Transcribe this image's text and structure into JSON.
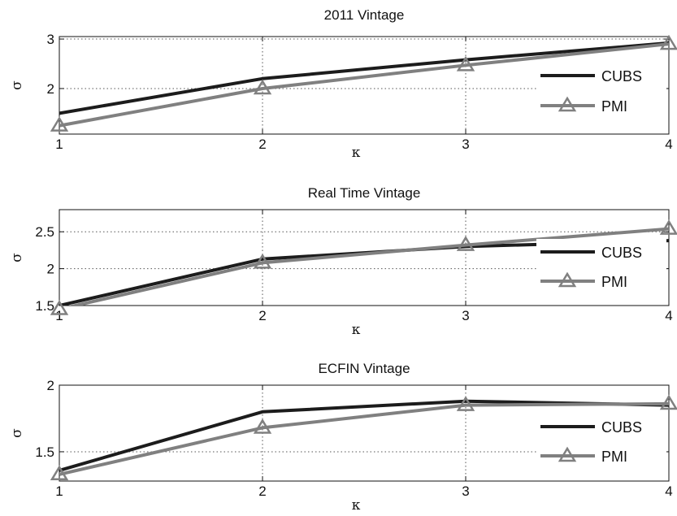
{
  "colors": {
    "CUBS": "#1c1c1c",
    "PMI": "#808080"
  },
  "chart_data": [
    {
      "type": "line",
      "title": "2011 Vintage",
      "xlabel": "κ",
      "ylabel": "σ",
      "xlim": [
        1,
        4
      ],
      "ylim": [
        1.08,
        3.05
      ],
      "xticks": [
        1,
        2,
        3,
        4
      ],
      "yticks": [
        2,
        3
      ],
      "x": [
        1,
        2,
        3,
        4
      ],
      "series": [
        {
          "name": "CUBS",
          "values": [
            1.5,
            2.2,
            2.58,
            2.92
          ]
        },
        {
          "name": "PMI",
          "values": [
            1.25,
            2.0,
            2.47,
            2.9
          ]
        }
      ],
      "grid": true,
      "legend": "right"
    },
    {
      "type": "line",
      "title": "Real Time Vintage",
      "xlabel": "κ",
      "ylabel": "σ",
      "xlim": [
        1,
        4
      ],
      "ylim": [
        1.5,
        2.8
      ],
      "xticks": [
        1,
        2,
        3,
        4
      ],
      "yticks": [
        1.5,
        2,
        2.5
      ],
      "x": [
        1,
        2,
        3,
        4
      ],
      "series": [
        {
          "name": "CUBS",
          "values": [
            1.5,
            2.13,
            2.3,
            2.38
          ]
        },
        {
          "name": "PMI",
          "values": [
            1.45,
            2.08,
            2.32,
            2.54
          ]
        }
      ],
      "grid": true,
      "legend": "right"
    },
    {
      "type": "line",
      "title": "ECFIN Vintage",
      "xlabel": "κ",
      "ylabel": "σ",
      "xlim": [
        1,
        4
      ],
      "ylim": [
        1.28,
        2.0
      ],
      "xticks": [
        1,
        2,
        3,
        4
      ],
      "yticks": [
        1.5,
        2
      ],
      "x": [
        1,
        2,
        3,
        4
      ],
      "series": [
        {
          "name": "CUBS",
          "values": [
            1.36,
            1.8,
            1.88,
            1.85
          ]
        },
        {
          "name": "PMI",
          "values": [
            1.33,
            1.68,
            1.85,
            1.86
          ]
        }
      ],
      "grid": true,
      "legend": "right"
    }
  ]
}
